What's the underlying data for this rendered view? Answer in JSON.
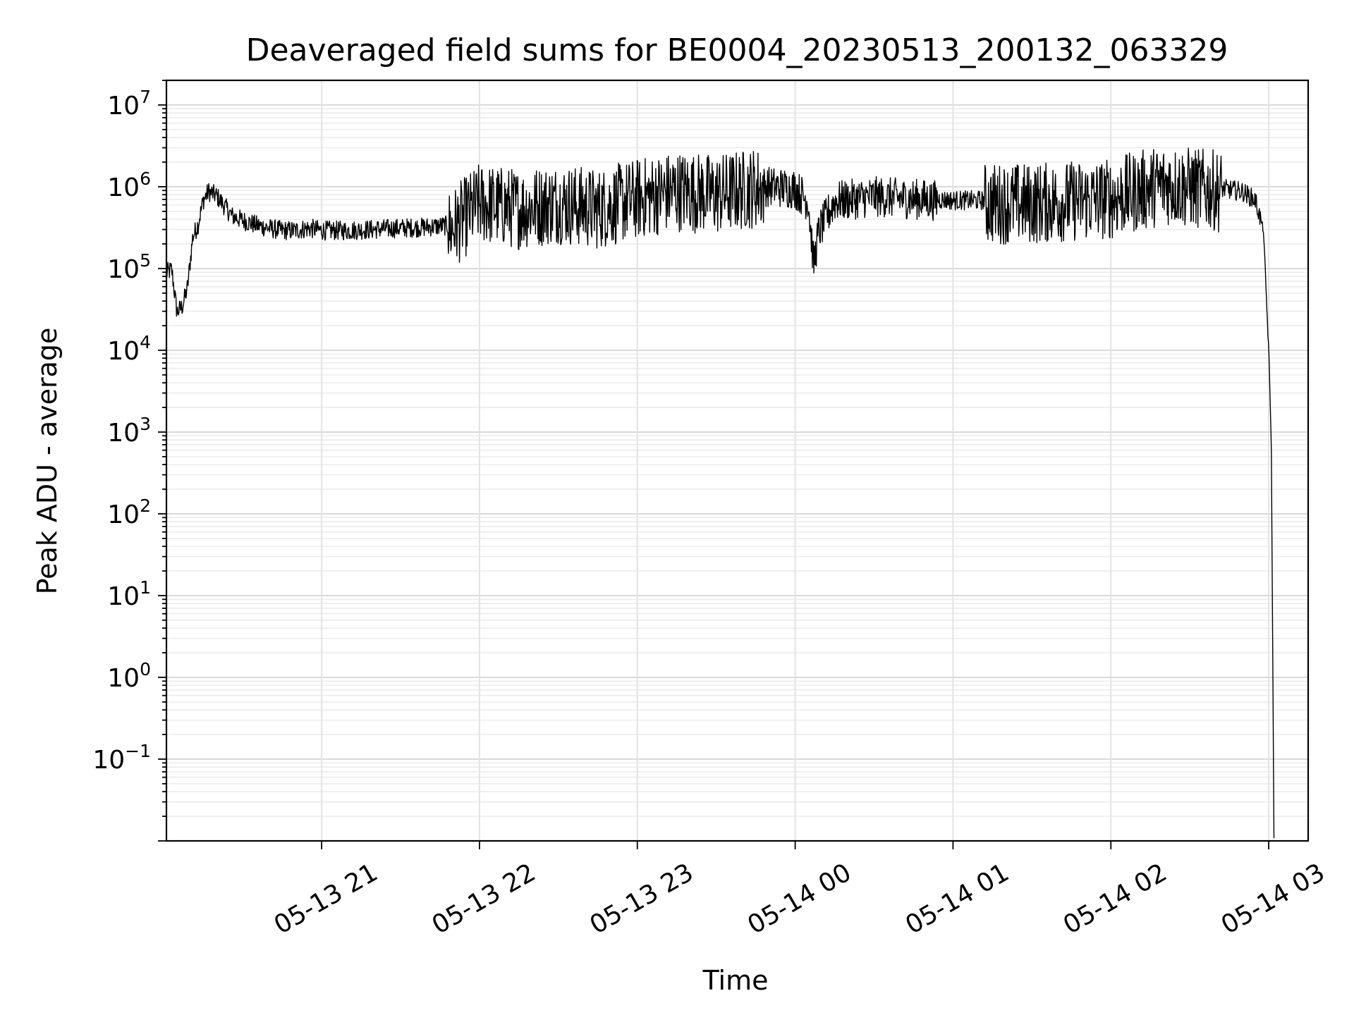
{
  "chart_data": {
    "type": "line",
    "title": "Deaveraged field sums for BE0004_20230513_200132_063329",
    "xlabel": "Time",
    "ylabel": "Peak ADU - average",
    "yscale": "log",
    "xlim": [
      "05-13 20:01",
      "05-14 03:15"
    ],
    "ylim": [
      0.01,
      20000000
    ],
    "grid": true,
    "x_ticks": [
      "05-13 21",
      "05-13 22",
      "05-13 23",
      "05-14 00",
      "05-14 01",
      "05-14 02",
      "05-14 03"
    ],
    "y_ticks": [
      {
        "base": "10",
        "exp": "7"
      },
      {
        "base": "10",
        "exp": "6"
      },
      {
        "base": "10",
        "exp": "5"
      },
      {
        "base": "10",
        "exp": "4"
      },
      {
        "base": "10",
        "exp": "3"
      },
      {
        "base": "10",
        "exp": "2"
      },
      {
        "base": "10",
        "exp": "1"
      },
      {
        "base": "10",
        "exp": "0"
      },
      {
        "base": "10",
        "exp": "−1"
      }
    ],
    "series": [
      {
        "color": "#000000",
        "x": [
          "05-13 20:01",
          "05-13 20:03",
          "05-13 20:05",
          "05-13 20:07",
          "05-13 20:09",
          "05-13 20:11",
          "05-13 20:13",
          "05-13 20:15",
          "05-13 20:17",
          "05-13 20:20",
          "05-13 20:23",
          "05-13 20:26",
          "05-13 20:30",
          "05-13 20:35",
          "05-13 20:40",
          "05-13 20:45",
          "05-13 20:50",
          "05-13 20:55",
          "05-13 21:00",
          "05-13 21:10",
          "05-13 21:20",
          "05-13 21:30",
          "05-13 21:40",
          "05-13 21:50",
          "05-13 22:00",
          "05-13 22:15",
          "05-13 22:30",
          "05-13 22:45",
          "05-13 23:00",
          "05-13 23:15",
          "05-13 23:30",
          "05-13 23:45",
          "05-14 00:00",
          "05-14 00:05",
          "05-14 00:07",
          "05-14 00:09",
          "05-14 00:15",
          "05-14 00:30",
          "05-14 00:45",
          "05-14 01:00",
          "05-14 01:30",
          "05-14 02:00",
          "05-14 02:20",
          "05-14 02:40",
          "05-14 02:50",
          "05-14 02:55",
          "05-14 02:58",
          "05-14 03:00",
          "05-14 03:01",
          "05-14 03:02"
        ],
        "y": [
          90000,
          100000,
          30000,
          35000,
          60000,
          250000,
          350000,
          700000,
          900000,
          800000,
          600000,
          450000,
          400000,
          350000,
          320000,
          300000,
          300000,
          320000,
          300000,
          300000,
          310000,
          320000,
          330000,
          350000,
          700000,
          600000,
          700000,
          600000,
          800000,
          1000000,
          900000,
          1100000,
          1000000,
          700000,
          120000,
          300000,
          700000,
          800000,
          750000,
          700000,
          700000,
          800000,
          1200000,
          1000000,
          900000,
          700000,
          300000,
          10000,
          800,
          0.01
        ]
      }
    ]
  }
}
